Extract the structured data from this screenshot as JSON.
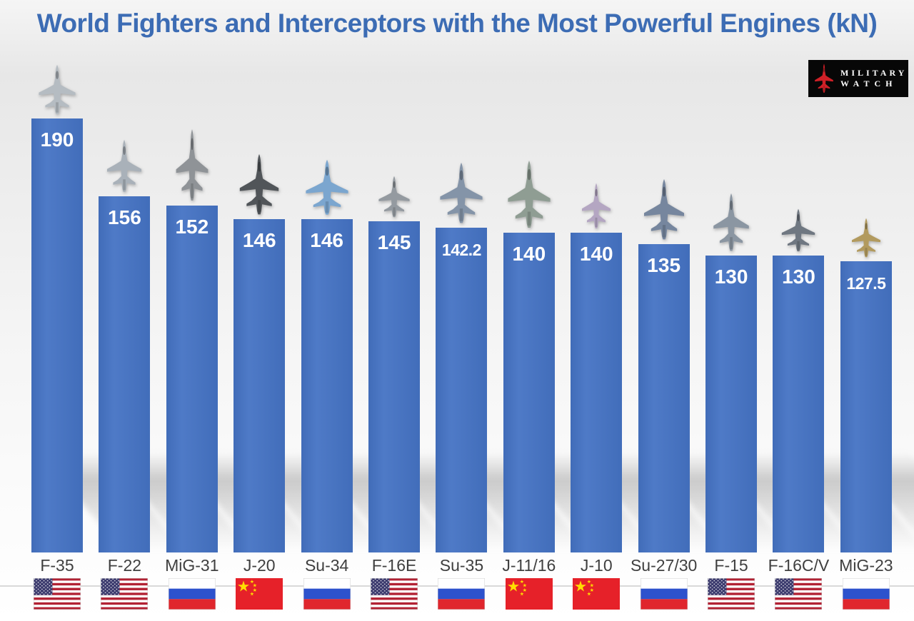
{
  "title": "World Fighters and Interceptors with the Most Powerful Engines (kN)",
  "logo": {
    "line1": "MILITARY",
    "line2": "WATCH"
  },
  "colors": {
    "title": "#3c6cb4",
    "bar": "#4573c4",
    "value_text": "#ffffff",
    "label_text": "#3f3f3f",
    "logo_bg": "#070707",
    "logo_jet": "#cf2027",
    "divider": "#d9d9d9"
  },
  "chart_data": {
    "type": "bar",
    "title": "World Fighters and Interceptors with the Most Powerful Engines (kN)",
    "unit": "kN",
    "ylim": [
      0,
      190
    ],
    "grid": false,
    "legend": "none",
    "bar_color": "#4573c4",
    "categories": [
      "F-35",
      "F-22",
      "MiG-31",
      "J-20",
      "Su-34",
      "F-16E",
      "Su-35",
      "J-11/16",
      "J-10",
      "Su-27/30",
      "F-15",
      "F-16C/V",
      "MiG-23"
    ],
    "values": [
      190,
      156,
      152,
      146,
      146,
      145,
      142.2,
      140,
      140,
      135,
      130,
      130,
      127.5
    ],
    "items": [
      {
        "label": "F-35",
        "value": 190,
        "value_label": "190",
        "country": "USA",
        "flag": "us",
        "jet_color": "#b5bcc2",
        "jet_w": 64,
        "jet_h": 72
      },
      {
        "label": "F-22",
        "value": 156,
        "value_label": "156",
        "country": "USA",
        "flag": "us",
        "jet_color": "#a9b1b9",
        "jet_w": 60,
        "jet_h": 76
      },
      {
        "label": "MiG-31",
        "value": 152,
        "value_label": "152",
        "country": "Russia",
        "flag": "ru",
        "jet_color": "#8f9397",
        "jet_w": 56,
        "jet_h": 104
      },
      {
        "label": "J-20",
        "value": 146,
        "value_label": "146",
        "country": "China",
        "flag": "cn",
        "jet_color": "#515559",
        "jet_w": 68,
        "jet_h": 88
      },
      {
        "label": "Su-34",
        "value": 146,
        "value_label": "146",
        "country": "Russia",
        "flag": "ru",
        "jet_color": "#7ba6cf",
        "jet_w": 74,
        "jet_h": 80
      },
      {
        "label": "F-16E",
        "value": 145,
        "value_label": "145",
        "country": "USA",
        "flag": "us",
        "jet_color": "#949aa0",
        "jet_w": 54,
        "jet_h": 60
      },
      {
        "label": "Su-35",
        "value": 142.2,
        "value_label": "142.2",
        "country": "Russia",
        "flag": "ru",
        "jet_color": "#8494a8",
        "jet_w": 74,
        "jet_h": 88
      },
      {
        "label": "J-11/16",
        "value": 140,
        "value_label": "140",
        "country": "China",
        "flag": "cn",
        "jet_color": "#8f9d93",
        "jet_w": 74,
        "jet_h": 98
      },
      {
        "label": "J-10",
        "value": 140,
        "value_label": "140",
        "country": "China",
        "flag": "cn",
        "jet_color": "#b4a6c2",
        "jet_w": 50,
        "jet_h": 66
      },
      {
        "label": "Su-27/30",
        "value": 135,
        "value_label": "135",
        "country": "Russia",
        "flag": "ru",
        "jet_color": "#76869e",
        "jet_w": 70,
        "jet_h": 88
      },
      {
        "label": "F-15",
        "value": 130,
        "value_label": "130",
        "country": "USA",
        "flag": "us",
        "jet_color": "#8b96a2",
        "jet_w": 62,
        "jet_h": 84
      },
      {
        "label": "F-16C/V",
        "value": 130,
        "value_label": "130",
        "country": "USA",
        "flag": "us",
        "jet_color": "#6f7781",
        "jet_w": 58,
        "jet_h": 62
      },
      {
        "label": "MiG-23",
        "value": 127.5,
        "value_label": "127.5",
        "country": "Russia",
        "flag": "ru",
        "jet_color": "#b29a5e",
        "jet_w": 50,
        "jet_h": 57
      }
    ]
  }
}
